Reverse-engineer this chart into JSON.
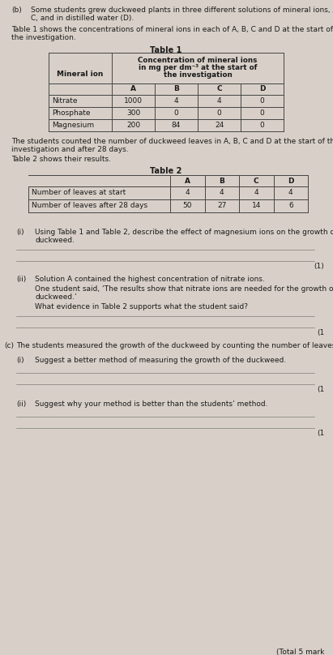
{
  "bg_color": "#d8d0c8",
  "text_color": "#1a1a1a",
  "table1_rows": [
    [
      "Nitrate",
      "1000",
      "4",
      "4",
      "0"
    ],
    [
      "Phosphate",
      "300",
      "0",
      "0",
      "0"
    ],
    [
      "Magnesium",
      "200",
      "84",
      "24",
      "0"
    ]
  ],
  "table2_rows": [
    [
      "Number of leaves at start",
      "4",
      "4",
      "4",
      "4"
    ],
    [
      "Number of leaves after 28 days",
      "50",
      "27",
      "14",
      "6"
    ]
  ]
}
